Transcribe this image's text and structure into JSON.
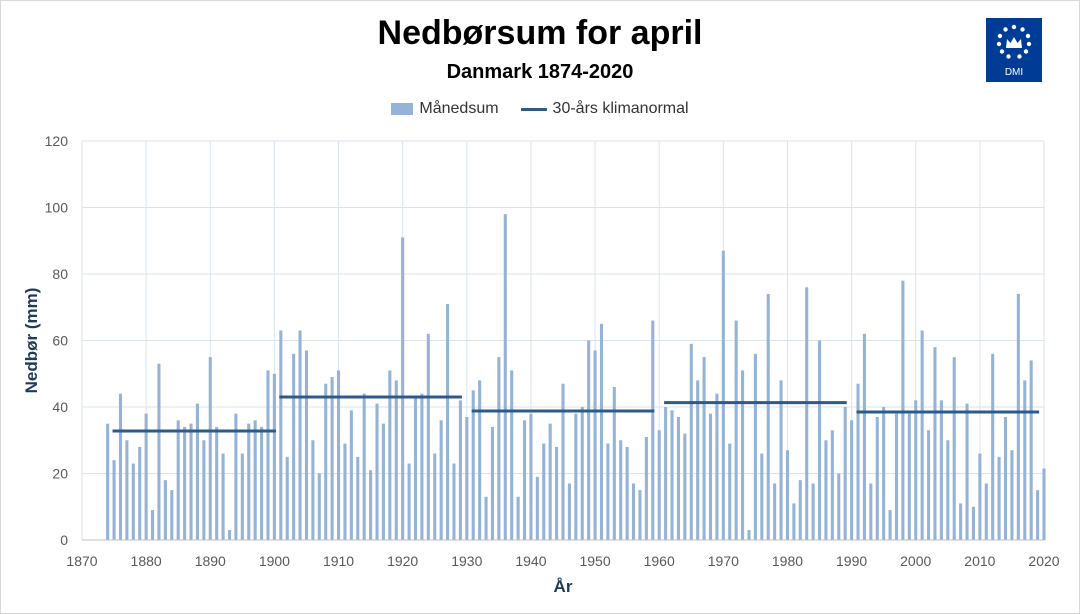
{
  "title": "Nedbørsum for april",
  "subtitle": "Danmark 1874-2020",
  "logo": {
    "text": "DMI",
    "icon": "dmi-crown-logo",
    "color": "#003c96"
  },
  "colors": {
    "bar": "#95b3d7",
    "normal_line": "#2e5a87",
    "grid": "#d9e3ee",
    "axis_label": "#1f3b5a"
  },
  "chart_data": {
    "type": "bar",
    "title": "Nedbørsum for april",
    "subtitle": "Danmark 1874-2020",
    "xlabel": "År",
    "ylabel": "Nedbør (mm)",
    "xlim": [
      1870,
      2020
    ],
    "ylim": [
      0,
      120
    ],
    "xticks": [
      1870,
      1880,
      1890,
      1900,
      1910,
      1920,
      1930,
      1940,
      1950,
      1960,
      1970,
      1980,
      1990,
      2000,
      2010,
      2020
    ],
    "yticks": [
      0,
      20,
      40,
      60,
      80,
      100,
      120
    ],
    "grid": true,
    "legend_position": "top-center",
    "series": [
      {
        "name": "Månedsum",
        "type": "bar",
        "x_start": 1874,
        "values": [
          35,
          24,
          44,
          30,
          23,
          28,
          38,
          9,
          53,
          18,
          15,
          36,
          34,
          35,
          41,
          30,
          55,
          34,
          26,
          3,
          38,
          26,
          35,
          36,
          34,
          51,
          50,
          63,
          25,
          56,
          63,
          57,
          30,
          20,
          47,
          49,
          51,
          29,
          39,
          25,
          44,
          21,
          41,
          35,
          51,
          48,
          91,
          23,
          43,
          44,
          62,
          26,
          36,
          71,
          23,
          42,
          37,
          45,
          48,
          13,
          34,
          55,
          98,
          51,
          13,
          36,
          38,
          19,
          29,
          35,
          28,
          47,
          17,
          38,
          40,
          60,
          57,
          65,
          29,
          46,
          30,
          28,
          17,
          15,
          31,
          66,
          33,
          40,
          39,
          37,
          32,
          59,
          48,
          55,
          38,
          44,
          87,
          29,
          66,
          51,
          3,
          56,
          26,
          74,
          17,
          48,
          27,
          11,
          18,
          76,
          17,
          60,
          30,
          33,
          20,
          40,
          36,
          47,
          62,
          17,
          37,
          40,
          9,
          38,
          78,
          38,
          42,
          63,
          33,
          58,
          42,
          30,
          55,
          11,
          41,
          10,
          26,
          17,
          56,
          25,
          37,
          27,
          74,
          48,
          54,
          15,
          21.5
        ]
      },
      {
        "name": "30-års klimanormal",
        "type": "line",
        "segments": [
          {
            "from": 1875,
            "to": 1900,
            "value": 32.8
          },
          {
            "from": 1901,
            "to": 1929,
            "value": 43.0
          },
          {
            "from": 1931,
            "to": 1959,
            "value": 38.8
          },
          {
            "from": 1961,
            "to": 1989,
            "value": 41.3
          },
          {
            "from": 1991,
            "to": 2019,
            "value": 38.5
          }
        ]
      }
    ]
  }
}
